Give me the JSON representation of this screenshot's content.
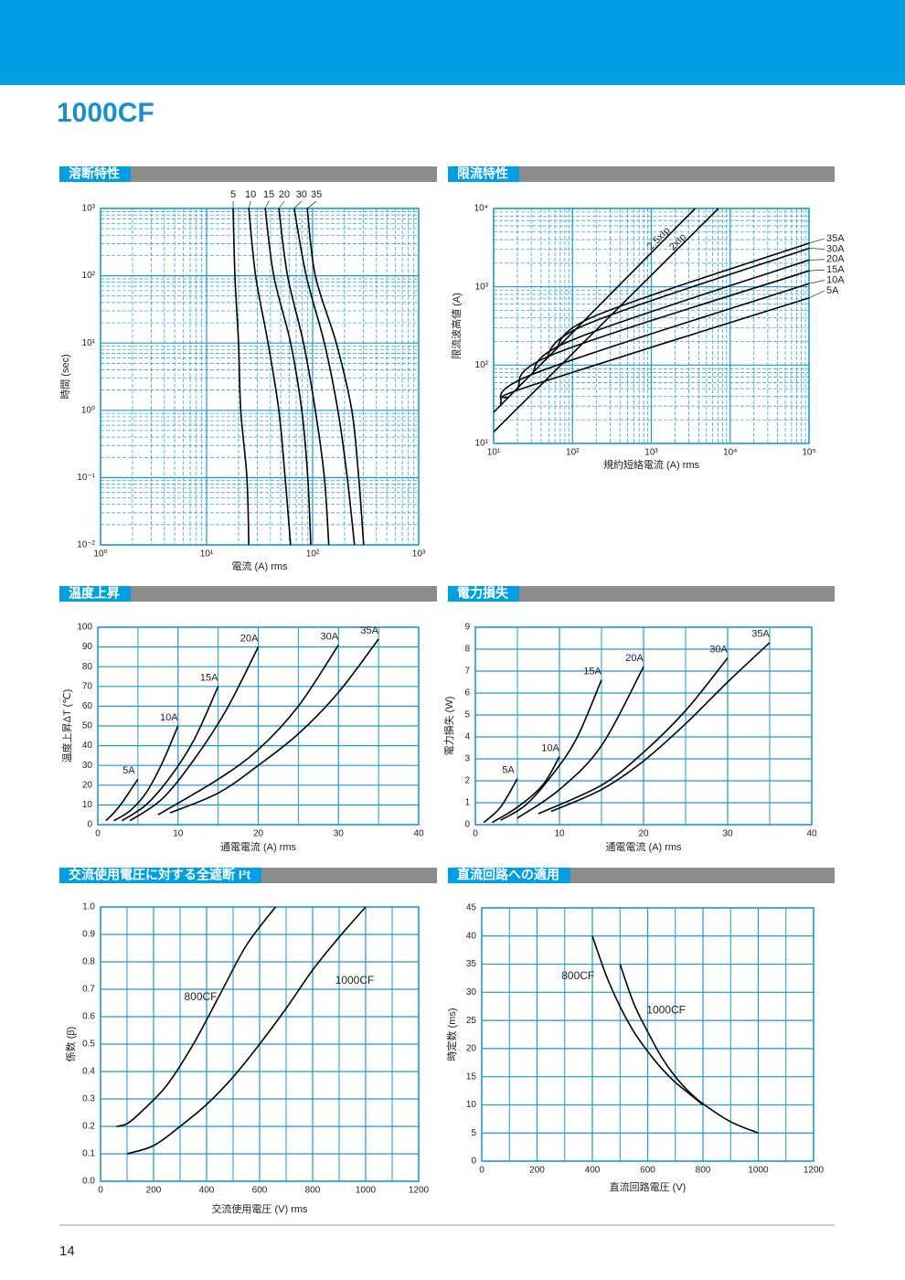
{
  "header": {
    "title": "1000CF"
  },
  "page_number": "14",
  "chart_data": [
    {
      "type": "line",
      "title": "溶断特性",
      "xlabel": "電流 (A) rms",
      "ylabel": "時間 (sec)",
      "xscale": "log",
      "yscale": "log",
      "xlim": [
        1,
        1000
      ],
      "ylim": [
        0.01,
        1000
      ],
      "xticks": [
        {
          "value": 1,
          "label": "10⁰"
        },
        {
          "value": 10,
          "label": "10¹"
        },
        {
          "value": 100,
          "label": "10²"
        },
        {
          "value": 1000,
          "label": "10³"
        }
      ],
      "yticks": [
        {
          "value": 0.01,
          "label": "10⁻²"
        },
        {
          "value": 0.1,
          "label": "10⁻¹"
        },
        {
          "value": 1,
          "label": "10⁰"
        },
        {
          "value": 10,
          "label": "10¹"
        },
        {
          "value": 100,
          "label": "10²"
        },
        {
          "value": 1000,
          "label": "10³"
        }
      ],
      "grid": true,
      "grid_color": "#1a9ad6",
      "series": [
        {
          "name": "5",
          "color": "#000000",
          "x": [
            17.8,
            18.5,
            20,
            21,
            24,
            25
          ],
          "values": [
            1000,
            100,
            10,
            1,
            0.1,
            0.01
          ]
        },
        {
          "name": "10",
          "color": "#000000",
          "x": [
            25,
            29,
            38,
            48,
            55,
            62
          ],
          "values": [
            1000,
            100,
            10,
            1,
            0.1,
            0.01
          ]
        },
        {
          "name": "15",
          "color": "#000000",
          "x": [
            35.7,
            43,
            62,
            79,
            90,
            96
          ],
          "values": [
            1000,
            100,
            10,
            1,
            0.1,
            0.01
          ]
        },
        {
          "name": "20",
          "color": "#000000",
          "x": [
            48,
            58,
            82,
            106,
            129,
            142
          ],
          "values": [
            1000,
            100,
            10,
            1,
            0.1,
            0.01
          ]
        },
        {
          "name": "30",
          "color": "#000000",
          "x": [
            67,
            87,
            129,
            173,
            212,
            248
          ],
          "values": [
            1000,
            100,
            10,
            1,
            0.1,
            0.01
          ]
        },
        {
          "name": "35",
          "color": "#000000",
          "x": [
            89,
            106,
            167,
            234,
            272,
            303
          ],
          "values": [
            1000,
            100,
            10,
            1,
            0.1,
            0.01
          ]
        }
      ]
    },
    {
      "type": "line",
      "title": "限流特性",
      "xlabel": "規約短絡電流 (A) rms",
      "ylabel": "限流波高値 (A)",
      "xscale": "log",
      "yscale": "log",
      "xlim": [
        10,
        100000
      ],
      "ylim": [
        10,
        10000
      ],
      "xticks": [
        {
          "value": 10,
          "label": "10¹"
        },
        {
          "value": 100,
          "label": "10²"
        },
        {
          "value": 1000,
          "label": "10³"
        },
        {
          "value": 10000,
          "label": "10⁴"
        },
        {
          "value": 100000,
          "label": "10⁵"
        }
      ],
      "yticks": [
        {
          "value": 10,
          "label": "10¹"
        },
        {
          "value": 100,
          "label": "10²"
        },
        {
          "value": 1000,
          "label": "10³"
        },
        {
          "value": 10000,
          "label": "10⁴"
        }
      ],
      "grid": true,
      "grid_color": "#1a9ad6",
      "series": [
        {
          "name": "35A",
          "color": "#000000",
          "x": [
            60,
            200,
            100000
          ],
          "values": [
            155,
            430,
            3600
          ]
        },
        {
          "name": "30A",
          "color": "#000000",
          "x": [
            45,
            150,
            100000
          ],
          "values": [
            115,
            330,
            3100
          ]
        },
        {
          "name": "20A",
          "color": "#000000",
          "x": [
            30,
            100,
            100000
          ],
          "values": [
            75,
            210,
            2200
          ]
        },
        {
          "name": "15A",
          "color": "#000000",
          "x": [
            20,
            60,
            100000
          ],
          "values": [
            50,
            140,
            1600
          ]
        },
        {
          "name": "10A",
          "color": "#000000",
          "x": [
            12,
            35,
            100000
          ],
          "values": [
            32,
            80,
            1100
          ]
        },
        {
          "name": "5A",
          "color": "#000000",
          "x": [
            15,
            30,
            100000
          ],
          "values": [
            38,
            55,
            720
          ]
        },
        {
          "name": "2.5xIp",
          "color": "#000000",
          "x": [
            10,
            3600
          ],
          "values": [
            25,
            10000
          ]
        },
        {
          "name": "2xIp",
          "color": "#000000",
          "x": [
            10,
            7100
          ],
          "values": [
            14,
            10000
          ]
        }
      ]
    },
    {
      "type": "line",
      "title": "温度上昇",
      "xlabel": "通電電流 (A) rms",
      "ylabel": "温度上昇ΔT (℃)",
      "xlim": [
        0,
        40
      ],
      "ylim": [
        0,
        100
      ],
      "xticks": [
        0,
        10,
        20,
        30,
        40
      ],
      "xminor": [
        5,
        15,
        25,
        35
      ],
      "yticks": [
        0,
        10,
        20,
        30,
        40,
        50,
        60,
        70,
        80,
        90,
        100
      ],
      "grid": true,
      "grid_color": "#1a9ad6",
      "series": [
        {
          "name": "5A",
          "color": "#000000",
          "x": [
            1,
            2,
            3,
            4,
            5
          ],
          "values": [
            2,
            6,
            11,
            17,
            23
          ]
        },
        {
          "name": "10A",
          "color": "#000000",
          "x": [
            2,
            4,
            6,
            8,
            10
          ],
          "values": [
            2,
            7,
            16,
            31,
            50
          ]
        },
        {
          "name": "15A",
          "color": "#000000",
          "x": [
            3,
            6,
            9,
            12,
            15
          ],
          "values": [
            2,
            10,
            24,
            43,
            70
          ]
        },
        {
          "name": "20A",
          "color": "#000000",
          "x": [
            4,
            8,
            12,
            16,
            20
          ],
          "values": [
            2,
            13,
            33,
            58,
            90
          ]
        },
        {
          "name": "30A",
          "color": "#000000",
          "x": [
            7.5,
            15,
            20,
            25,
            30
          ],
          "values": [
            5,
            23,
            38,
            60,
            91
          ]
        },
        {
          "name": "35A",
          "color": "#000000",
          "x": [
            9,
            15,
            20,
            25,
            30,
            35
          ],
          "values": [
            6,
            16,
            30,
            46,
            67,
            94
          ]
        }
      ]
    },
    {
      "type": "line",
      "title": "電力損失",
      "xlabel": "通電電流 (A) rms",
      "ylabel": "電力損失 (W)",
      "xlim": [
        0,
        40
      ],
      "ylim": [
        0,
        9
      ],
      "xticks": [
        0,
        10,
        20,
        30,
        40
      ],
      "xminor": [
        5,
        15,
        25,
        35
      ],
      "yticks": [
        0,
        1,
        2,
        3,
        4,
        5,
        6,
        7,
        8,
        9
      ],
      "grid": true,
      "grid_color": "#1a9ad6",
      "series": [
        {
          "name": "5A",
          "color": "#000000",
          "x": [
            1,
            3,
            5
          ],
          "values": [
            0.1,
            0.8,
            2.1
          ]
        },
        {
          "name": "10A",
          "color": "#000000",
          "x": [
            2,
            5,
            8,
            10
          ],
          "values": [
            0.1,
            0.8,
            1.8,
            3.1
          ]
        },
        {
          "name": "15A",
          "color": "#000000",
          "x": [
            3,
            6,
            9,
            12,
            15
          ],
          "values": [
            0.2,
            0.9,
            2.2,
            3.9,
            6.6
          ]
        },
        {
          "name": "20A",
          "color": "#000000",
          "x": [
            5,
            10,
            15,
            20
          ],
          "values": [
            0.3,
            1.6,
            3.6,
            7.2
          ]
        },
        {
          "name": "30A",
          "color": "#000000",
          "x": [
            7.5,
            15,
            20,
            25,
            30
          ],
          "values": [
            0.5,
            1.8,
            3.3,
            5.2,
            7.6
          ]
        },
        {
          "name": "35A",
          "color": "#000000",
          "x": [
            9,
            15,
            20,
            25,
            30,
            35
          ],
          "values": [
            0.6,
            1.6,
            2.9,
            4.6,
            6.5,
            8.3
          ]
        }
      ]
    },
    {
      "type": "line",
      "title": "交流使用電圧に対する全遮断 I²t",
      "xlabel": "交流使用電圧 (V) rms",
      "ylabel": "係数 (β)",
      "xlim": [
        0,
        1200
      ],
      "ylim": [
        0,
        1
      ],
      "xticks": [
        0,
        200,
        400,
        600,
        800,
        1000,
        1200
      ],
      "xminor": [
        100,
        300,
        500,
        700,
        900,
        1100
      ],
      "yticks": [
        {
          "value": 0,
          "label": "0.0"
        },
        0.1,
        0.2,
        0.3,
        0.4,
        0.5,
        0.6,
        0.7,
        0.8,
        0.9,
        {
          "value": 1,
          "label": "1.0"
        }
      ],
      "grid": true,
      "grid_color": "#1a9ad6",
      "series": [
        {
          "name": "800CF",
          "color": "#000000",
          "x": [
            60,
            100,
            150,
            250,
            350,
            450,
            550,
            660
          ],
          "values": [
            0.2,
            0.21,
            0.25,
            0.35,
            0.5,
            0.68,
            0.86,
            1
          ]
        },
        {
          "name": "1000CF",
          "color": "#000000",
          "x": [
            100,
            200,
            300,
            400,
            500,
            600,
            700,
            800,
            900,
            1000
          ],
          "values": [
            0.1,
            0.13,
            0.2,
            0.28,
            0.38,
            0.5,
            0.63,
            0.77,
            0.89,
            1
          ]
        }
      ]
    },
    {
      "type": "line",
      "title": "直流回路への適用",
      "xlabel": "直流回路電圧 (V)",
      "ylabel": "時定数 (ms)",
      "xlim": [
        0,
        1200
      ],
      "ylim": [
        0,
        45
      ],
      "xticks": [
        0,
        200,
        400,
        600,
        800,
        1000,
        1200
      ],
      "xminor": [
        100,
        300,
        500,
        700,
        900,
        1100
      ],
      "yticks": [
        0,
        5,
        10,
        15,
        20,
        25,
        30,
        35,
        40,
        45
      ],
      "grid": true,
      "grid_color": "#1a9ad6",
      "series": [
        {
          "name": "800CF",
          "color": "#000000",
          "x": [
            400,
            450,
            500,
            550,
            600,
            650,
            700,
            750,
            800
          ],
          "values": [
            40,
            33,
            27.5,
            23,
            19.5,
            16.5,
            14,
            12,
            10
          ]
        },
        {
          "name": "1000CF",
          "color": "#000000",
          "x": [
            500,
            550,
            600,
            650,
            700,
            750,
            800,
            900,
            1000
          ],
          "values": [
            35,
            28,
            23,
            18.5,
            15,
            12.3,
            10.2,
            7,
            5
          ]
        }
      ]
    }
  ]
}
